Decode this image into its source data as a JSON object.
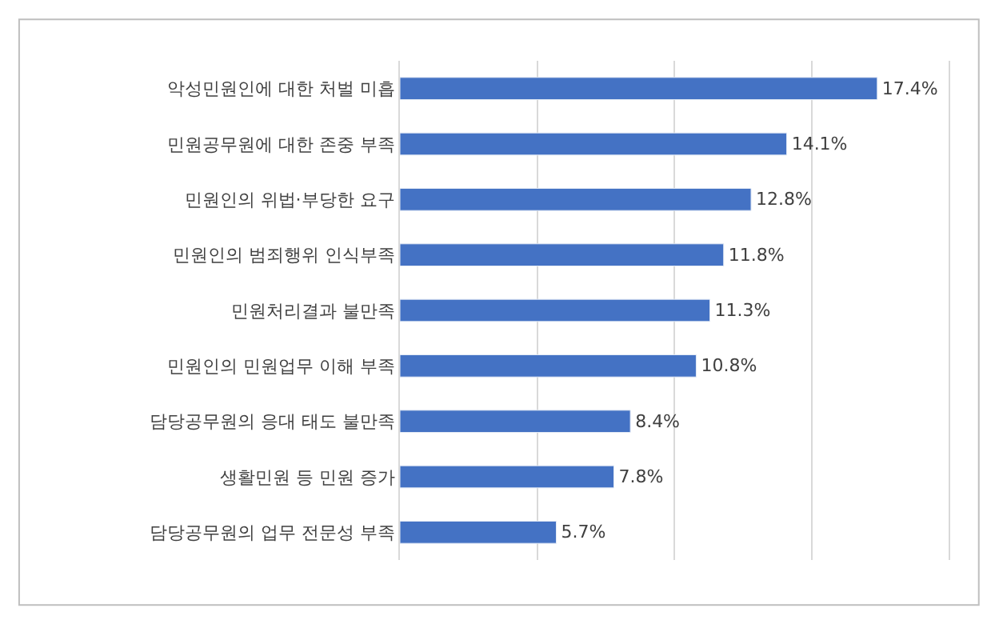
{
  "chart_data": {
    "type": "bar",
    "orientation": "horizontal",
    "categories": [
      "악성민원인에 대한 처벌 미흡",
      "민원공무원에 대한 존중 부족",
      "민원인의 위법·부당한 요구",
      "민원인의 범죄행위 인식부족",
      "민원처리결과 불만족",
      "민원인의 민원업무 이해 부족",
      "담당공무원의 응대 태도 불만족",
      "생활민원 등 민원 증가",
      "담당공무원의 업무 전문성 부족"
    ],
    "values": [
      17.4,
      14.1,
      12.8,
      11.8,
      11.3,
      10.8,
      8.4,
      7.8,
      5.7
    ],
    "value_labels": [
      "17.4%",
      "14.1%",
      "12.8%",
      "11.8%",
      "11.3%",
      "10.8%",
      "8.4%",
      "7.8%",
      "5.7%"
    ],
    "color": "#4472c4",
    "xlim": [
      0,
      20
    ],
    "xticks": [
      {
        "value": 0,
        "label": null
      },
      {
        "value": 5,
        "label": null
      },
      {
        "value": 10,
        "label": null
      },
      {
        "value": 15,
        "label": null
      },
      {
        "value": 20,
        "label": null
      }
    ],
    "grid": "x",
    "tick_labels": "y",
    "legend": false
  }
}
